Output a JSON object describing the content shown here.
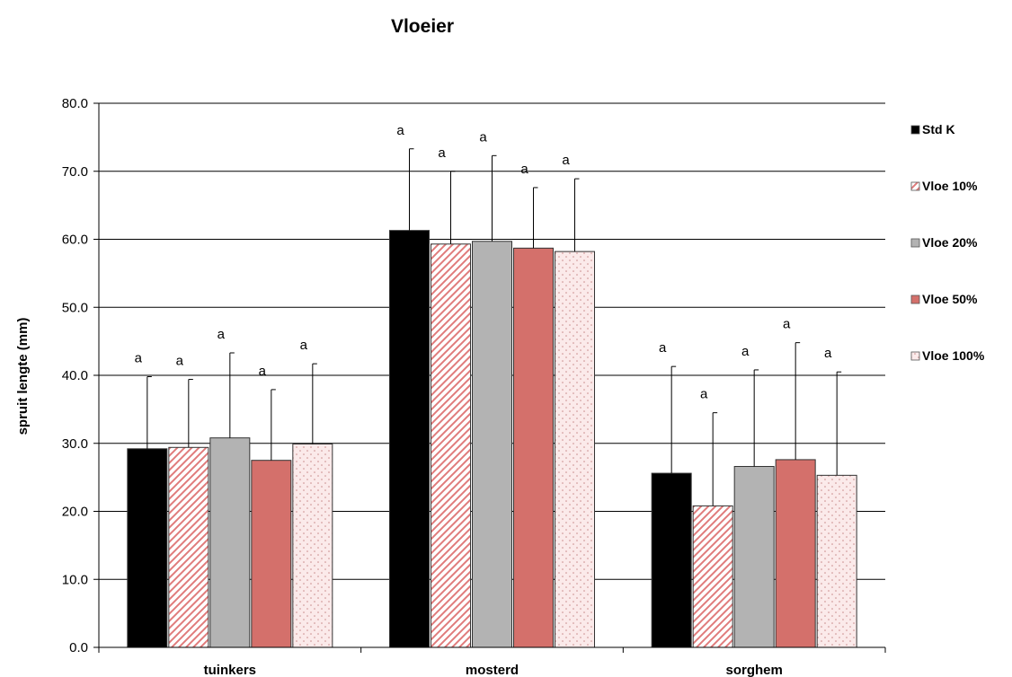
{
  "chart_data": {
    "type": "bar",
    "title": "Vloeier",
    "xlabel": "",
    "ylabel": "spruit lengte (mm)",
    "ylim": [
      0,
      80
    ],
    "ytick_step": 10,
    "ytick_labels": [
      "0.0",
      "10.0",
      "20.0",
      "30.0",
      "40.0",
      "50.0",
      "60.0",
      "70.0",
      "80.0"
    ],
    "grid": true,
    "legend_position": "right",
    "categories": [
      "tuinkers",
      "mosterd",
      "sorghem"
    ],
    "series": [
      {
        "name": "Std K",
        "values": [
          29.2,
          61.3,
          25.6
        ],
        "errors": [
          10.6,
          12.0,
          15.7
        ],
        "labels": [
          "a",
          "a",
          "a"
        ],
        "color": "#000000",
        "pattern": "solid"
      },
      {
        "name": "Vloe 10%",
        "values": [
          29.4,
          59.3,
          20.8
        ],
        "errors": [
          10.0,
          10.7,
          13.7
        ],
        "labels": [
          "a",
          "a",
          "a"
        ],
        "color": "#e07b7b",
        "pattern": "diagonal"
      },
      {
        "name": "Vloe 20%",
        "values": [
          30.8,
          59.7,
          26.6
        ],
        "errors": [
          12.5,
          12.6,
          14.2
        ],
        "labels": [
          "a",
          "a",
          "a"
        ],
        "color": "#b3b3b3",
        "pattern": "solid"
      },
      {
        "name": "Vloe 50%",
        "values": [
          27.5,
          58.7,
          27.6
        ],
        "errors": [
          10.4,
          8.9,
          17.2
        ],
        "labels": [
          "a",
          "a",
          "a"
        ],
        "color": "#d4706b",
        "pattern": "solid"
      },
      {
        "name": "Vloe 100%",
        "values": [
          29.9,
          58.2,
          25.3
        ],
        "errors": [
          11.8,
          10.7,
          15.2
        ],
        "labels": [
          "a",
          "a",
          "a"
        ],
        "color": "#f9e6e6",
        "pattern": "dots"
      }
    ]
  }
}
